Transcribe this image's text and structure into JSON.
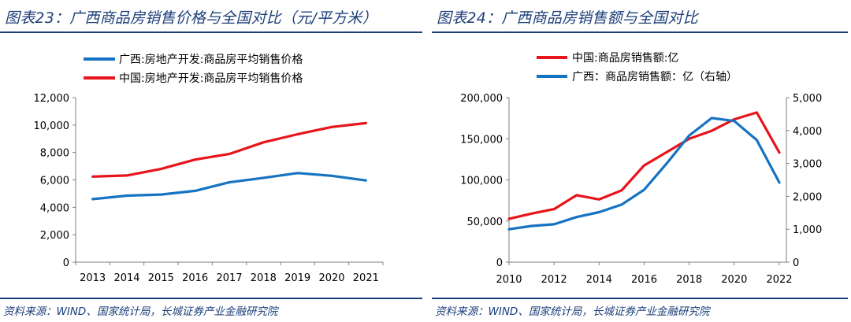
{
  "colors": {
    "red": "#e8141c",
    "blue": "#1673c2",
    "title": "#1c3f7a",
    "axis": "#7f7f7f"
  },
  "chart_data": [
    {
      "type": "line",
      "title": "图表23：广西商品房销售价格与全国对比（元/平方米）",
      "source": "资料来源：WIND、国家统计局，长城证券产业金融研究院",
      "categories": [
        "2013",
        "2014",
        "2015",
        "2016",
        "2017",
        "2018",
        "2019",
        "2020",
        "2021"
      ],
      "ylim": [
        0,
        12000
      ],
      "yticks": [
        0,
        2000,
        4000,
        6000,
        8000,
        10000,
        12000
      ],
      "ytick_labels": [
        "0",
        "2,000",
        "4,000",
        "6,000",
        "8,000",
        "10,000",
        "12,000"
      ],
      "series": [
        {
          "name": "广西:房地产开发:商品房平均销售价格",
          "color": "#1673c2",
          "values": [
            4600,
            4850,
            4930,
            5200,
            5820,
            6150,
            6500,
            6300,
            5960
          ]
        },
        {
          "name": "中国:房地产开发:商品房平均销售价格",
          "color": "#e8141c",
          "values": [
            6240,
            6320,
            6800,
            7480,
            7890,
            8740,
            9330,
            9860,
            10140
          ]
        }
      ]
    },
    {
      "type": "line",
      "title": "图表24：广西商品房销售额与全国对比",
      "source": "资料来源：WIND、国家统计局，长城证券产业金融研究院",
      "x": [
        2010,
        2011,
        2012,
        2013,
        2014,
        2015,
        2016,
        2017,
        2018,
        2019,
        2020,
        2021,
        2022
      ],
      "xtick_labels": [
        "2010",
        "2012",
        "2014",
        "2016",
        "2018",
        "2020",
        "2022"
      ],
      "xlim": [
        2010,
        2022
      ],
      "ylim": [
        0,
        200000
      ],
      "yticks": [
        0,
        50000,
        100000,
        150000,
        200000
      ],
      "ytick_labels": [
        "0",
        "50,000",
        "100,000",
        "150,000",
        "200,000"
      ],
      "y2lim": [
        0,
        5000
      ],
      "y2ticks": [
        0,
        1000,
        2000,
        3000,
        4000,
        5000
      ],
      "y2tick_labels": [
        "0",
        "1,000",
        "2,000",
        "3,000",
        "4,000",
        "5,000"
      ],
      "series": [
        {
          "name": "中国:商品房销售额:亿",
          "color": "#e8141c",
          "axis": "left",
          "values": [
            52700,
            59000,
            64500,
            81400,
            76300,
            87300,
            117600,
            133700,
            150000,
            159700,
            173600,
            181900,
            133300
          ]
        },
        {
          "name": "广西：商品房销售额：亿（右轴）",
          "color": "#1673c2",
          "axis": "right",
          "values": [
            1000,
            1100,
            1150,
            1370,
            1520,
            1750,
            2200,
            3000,
            3850,
            4380,
            4290,
            3710,
            2420
          ]
        }
      ]
    }
  ]
}
